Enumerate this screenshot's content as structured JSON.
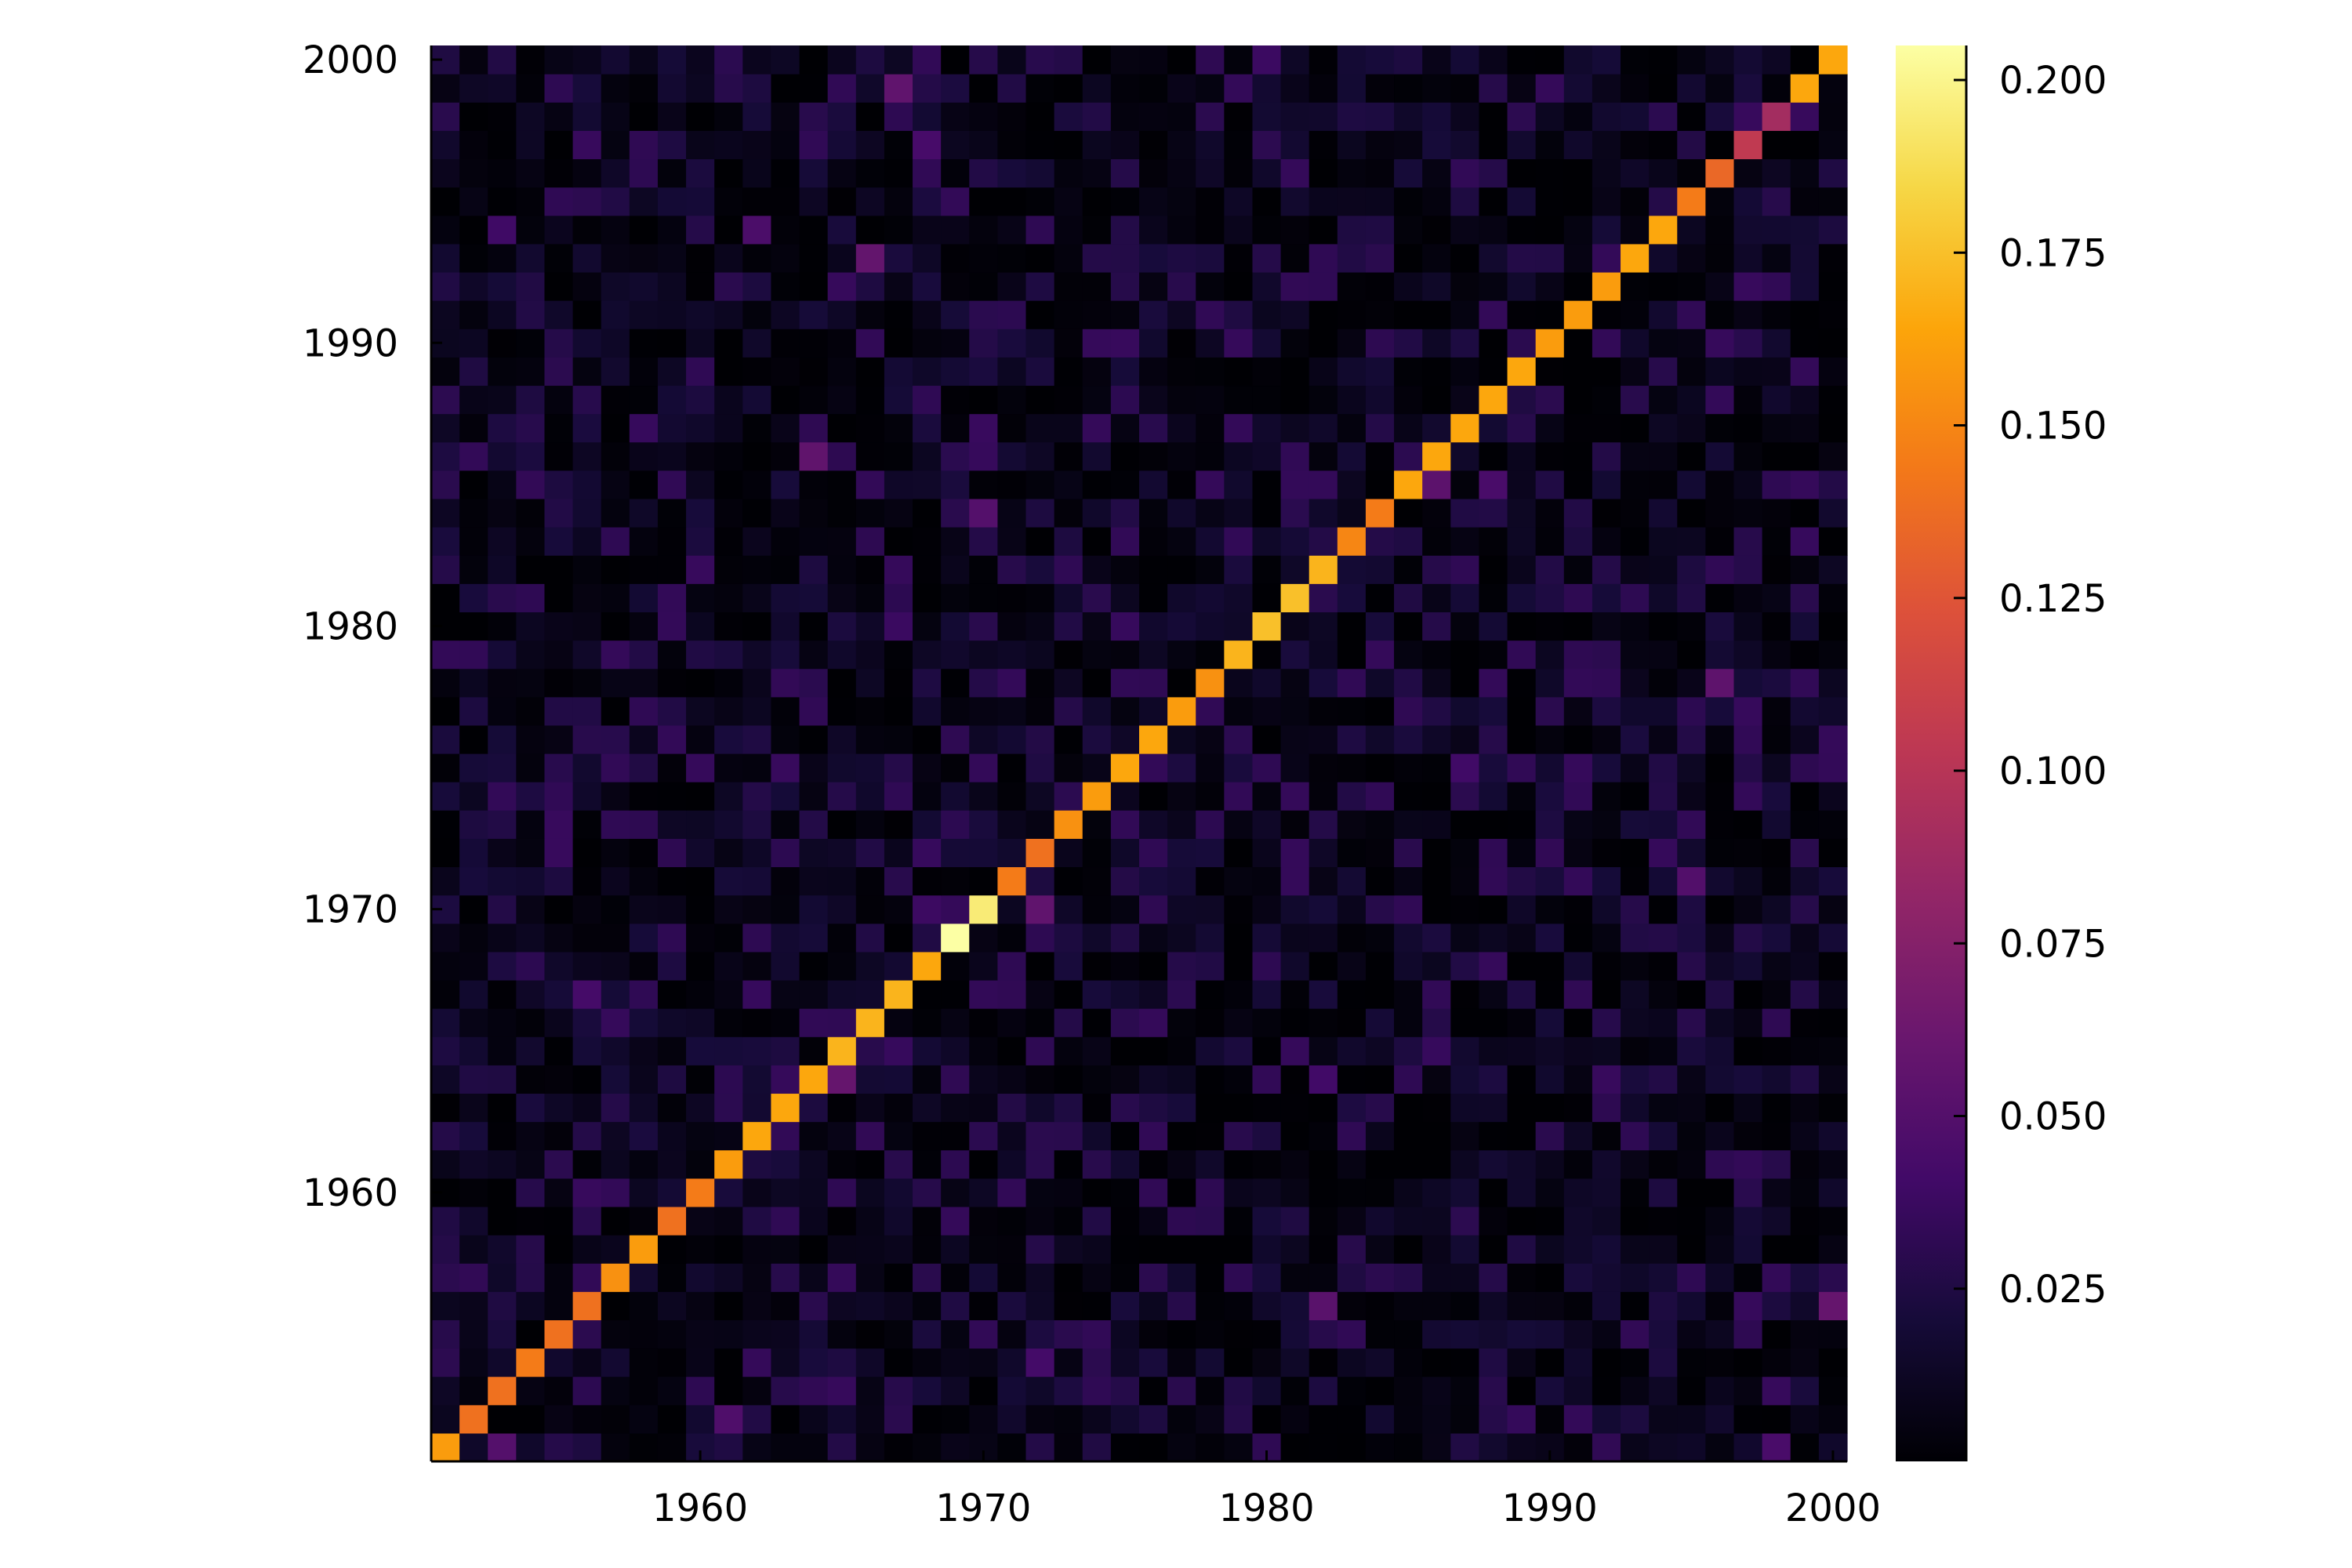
{
  "chart_data": {
    "type": "heatmap",
    "title": "",
    "xlabel": "",
    "ylabel": "",
    "x_range": [
      1951,
      2000
    ],
    "y_range": [
      1951,
      2000
    ],
    "x_ticks": [
      "1960",
      "1970",
      "1980",
      "1990",
      "2000"
    ],
    "y_ticks": [
      "1960",
      "1970",
      "1980",
      "1990",
      "2000"
    ],
    "grid": false,
    "legend": "none",
    "colormap": "inferno",
    "colorbar": {
      "range": [
        0.0,
        0.205
      ],
      "tick_values": [
        0.025,
        0.05,
        0.075,
        0.1,
        0.125,
        0.15,
        0.175,
        0.2
      ],
      "tick_labels": [
        "0.025",
        "0.050",
        "0.075",
        "0.100",
        "0.125",
        "0.150",
        "0.175",
        "0.200"
      ]
    },
    "diagonal_years": [
      1951,
      1952,
      1953,
      1954,
      1955,
      1956,
      1957,
      1958,
      1959,
      1960,
      1961,
      1962,
      1963,
      1964,
      1965,
      1966,
      1967,
      1968,
      1969,
      1970,
      1971,
      1972,
      1973,
      1974,
      1975,
      1976,
      1977,
      1978,
      1979,
      1980,
      1981,
      1982,
      1983,
      1984,
      1985,
      1986,
      1987,
      1988,
      1989,
      1990,
      1991,
      1992,
      1993,
      1994,
      1995,
      1996,
      1997,
      1998,
      1999,
      2000
    ],
    "diagonal_values": [
      0.16,
      0.14,
      0.14,
      0.145,
      0.14,
      0.14,
      0.155,
      0.16,
      0.14,
      0.145,
      0.16,
      0.165,
      0.165,
      0.165,
      0.17,
      0.17,
      0.17,
      0.165,
      0.205,
      0.195,
      0.145,
      0.14,
      0.155,
      0.16,
      0.165,
      0.165,
      0.16,
      0.155,
      0.17,
      0.175,
      0.175,
      0.17,
      0.15,
      0.145,
      0.165,
      0.165,
      0.165,
      0.165,
      0.165,
      0.16,
      0.16,
      0.16,
      0.165,
      0.165,
      0.145,
      0.135,
      0.105,
      0.09,
      0.165,
      0.165
    ],
    "off_diagonal_value_range": [
      0.0,
      0.06
    ]
  }
}
